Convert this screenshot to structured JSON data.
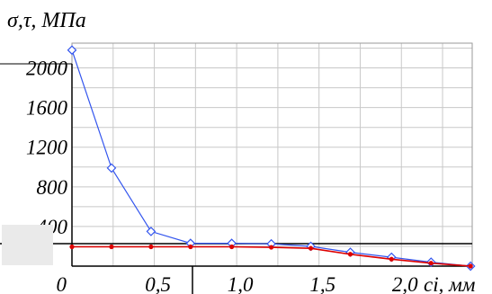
{
  "chart_data": {
    "type": "line",
    "title": "σ,τ, МПа",
    "xlabel": "сі, мм",
    "xlim": [
      0,
      2.43
    ],
    "ylim": [
      0,
      2250
    ],
    "x_ticks": [
      {
        "value": 0,
        "label": "0"
      },
      {
        "value": 0.5,
        "label": "0,5"
      },
      {
        "value": 1.0,
        "label": "1,0"
      },
      {
        "value": 1.5,
        "label": "1,5"
      },
      {
        "value": 2.0,
        "label": "2,0"
      }
    ],
    "y_ticks": [
      {
        "value": 400,
        "label": "400"
      },
      {
        "value": 800,
        "label": "800"
      },
      {
        "value": 1200,
        "label": "1200"
      },
      {
        "value": 1600,
        "label": "1600"
      },
      {
        "value": 2000,
        "label": "2000"
      }
    ],
    "grid": true,
    "colors": {
      "blue": "#3355ee",
      "red": "#dd0000",
      "grid": "#c8c8c8"
    },
    "series": [
      {
        "color": "#3355ee",
        "marker": "diamond",
        "x": [
          0,
          0.24,
          0.48,
          0.72,
          0.97,
          1.21,
          1.45,
          1.69,
          1.94,
          2.18,
          2.42
        ],
        "y": [
          2180,
          990,
          350,
          230,
          230,
          225,
          200,
          140,
          90,
          40,
          0
        ]
      },
      {
        "color": "#dd0000",
        "marker": "dot",
        "x": [
          0,
          0.24,
          0.48,
          0.72,
          0.97,
          1.21,
          1.45,
          1.69,
          1.94,
          2.18,
          2.42
        ],
        "y": [
          195,
          195,
          195,
          195,
          195,
          190,
          180,
          120,
          70,
          30,
          0
        ]
      }
    ]
  }
}
